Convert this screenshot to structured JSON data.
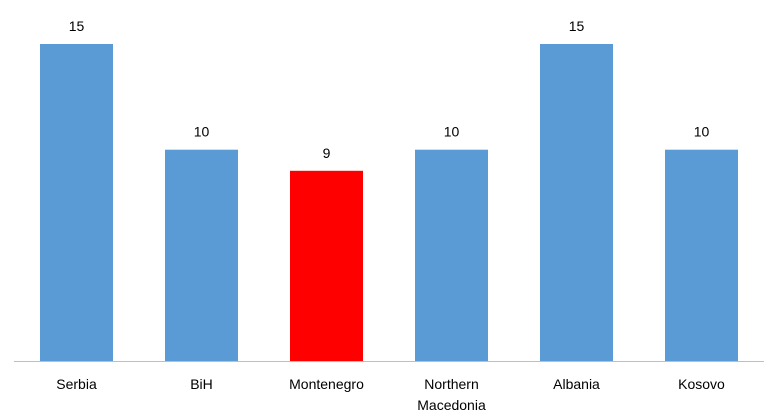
{
  "chart_data": {
    "type": "bar",
    "categories": [
      "Serbia",
      "BiH",
      "Montenegro",
      "Northern Macedonia",
      "Albania",
      "Kosovo"
    ],
    "category_lines": [
      [
        "Serbia"
      ],
      [
        "BiH"
      ],
      [
        "Montenegro"
      ],
      [
        "Northern",
        "Macedonia"
      ],
      [
        "Albania"
      ],
      [
        "Kosovo"
      ]
    ],
    "values": [
      15,
      10,
      9,
      10,
      15,
      10
    ],
    "bar_colors": [
      "#5b9bd5",
      "#5b9bd5",
      "#ff0000",
      "#5b9bd5",
      "#5b9bd5",
      "#5b9bd5"
    ],
    "data_labels": [
      "15",
      "10",
      "9",
      "10",
      "15",
      "10"
    ],
    "title": "",
    "xlabel": "",
    "ylabel": "",
    "ylim": [
      0,
      15
    ],
    "grid": false,
    "legend": "none",
    "axis_color": "#bfbfbf"
  }
}
